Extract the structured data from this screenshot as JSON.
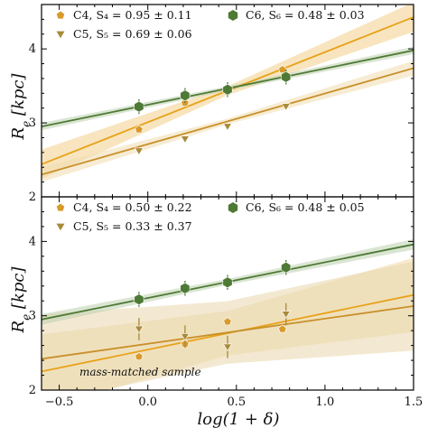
{
  "chart_data": [
    {
      "type": "scatter",
      "ylabel": "R_e [kpc]",
      "xlim": [
        -0.6,
        1.5
      ],
      "ylim": [
        2,
        4.6
      ],
      "yticks": [
        2,
        3,
        4
      ],
      "series": [
        {
          "name": "C4",
          "legend": "C4,  S₄ = 0.95 ± 0.11",
          "marker": "pentagon",
          "color": "#d79a2b",
          "x": [
            -0.05,
            0.21,
            0.45,
            0.76
          ],
          "y": [
            2.91,
            3.27,
            3.42,
            3.72
          ],
          "yerr": [
            0.04,
            0.04,
            0.04,
            0.04
          ],
          "fit": {
            "x": [
              -0.6,
              1.5
            ],
            "y": [
              2.44,
              4.43
            ]
          },
          "band": [
            0.06,
            0.2
          ],
          "fit_color": "#e8a21a",
          "band_color": "#f2cf8a"
        },
        {
          "name": "C5",
          "legend": "C5,  S₅ = 0.69 ± 0.06",
          "marker": "triangle-down",
          "color": "#a88a3a",
          "x": [
            -0.05,
            0.21,
            0.45,
            0.78
          ],
          "y": [
            2.62,
            2.78,
            2.95,
            3.22
          ],
          "yerr": [
            0.04,
            0.04,
            0.04,
            0.04
          ],
          "fit": {
            "x": [
              -0.6,
              1.5
            ],
            "y": [
              2.3,
              3.74
            ]
          },
          "band": [
            0.04,
            0.1
          ],
          "fit_color": "#c8902a",
          "band_color": "#f0dcae"
        },
        {
          "name": "C6",
          "legend": "C6,  S₆ = 0.48 ± 0.03",
          "marker": "hexagon",
          "color": "#4e7a35",
          "x": [
            -0.05,
            0.21,
            0.45,
            0.78
          ],
          "y": [
            3.22,
            3.37,
            3.45,
            3.62
          ],
          "yerr": [
            0.1,
            0.1,
            0.1,
            0.1
          ],
          "fit": {
            "x": [
              -0.6,
              1.5
            ],
            "y": [
              2.95,
              3.98
            ]
          },
          "band": [
            0.03,
            0.05
          ],
          "fit_color": "#4e7a35",
          "band_color": "#bcd0ad"
        }
      ]
    },
    {
      "type": "scatter",
      "xlabel": "log(1 + δ)",
      "ylabel": "R_e [kpc]",
      "annotation": "mass-matched sample",
      "xlim": [
        -0.6,
        1.5
      ],
      "ylim": [
        2,
        4.6
      ],
      "yticks": [
        2,
        3,
        4
      ],
      "xticks": [
        -0.5,
        0.0,
        0.5,
        1.0,
        1.5
      ],
      "xtick_labels": [
        "−0.5",
        "0.0",
        "0.5",
        "1.0",
        "1.5"
      ],
      "series": [
        {
          "name": "C4",
          "legend": "C4,  S₄ = 0.50 ± 0.22",
          "marker": "pentagon",
          "color": "#d79a2b",
          "x": [
            -0.05,
            0.21,
            0.45,
            0.76
          ],
          "y": [
            2.45,
            2.62,
            2.92,
            2.82
          ],
          "yerr": [
            0.05,
            0.05,
            0.05,
            0.05
          ],
          "fit": {
            "x": [
              -0.6,
              1.5
            ],
            "y": [
              2.25,
              3.28
            ]
          },
          "band": [
            0.3,
            0.5
          ],
          "fit_color": "#e8a21a",
          "band_color": "#f0d9a6"
        },
        {
          "name": "C5",
          "legend": "C5,  S₅ = 0.33 ± 0.37",
          "marker": "triangle-down",
          "color": "#a88a3a",
          "x": [
            -0.05,
            0.21,
            0.45,
            0.78
          ],
          "y": [
            2.82,
            2.72,
            2.58,
            3.02
          ],
          "yerr": [
            0.15,
            0.15,
            0.15,
            0.15
          ],
          "fit": {
            "x": [
              -0.6,
              1.5
            ],
            "y": [
              2.42,
              3.13
            ]
          },
          "band": [
            0.42,
            0.6
          ],
          "fit_color": "#c8902a",
          "band_color": "#ead7ad"
        },
        {
          "name": "C6",
          "legend": "C6,  S₆ = 0.48 ± 0.05",
          "marker": "hexagon",
          "color": "#4e7a35",
          "x": [
            -0.05,
            0.21,
            0.45,
            0.78
          ],
          "y": [
            3.22,
            3.37,
            3.45,
            3.65
          ],
          "yerr": [
            0.1,
            0.1,
            0.1,
            0.1
          ],
          "fit": {
            "x": [
              -0.6,
              1.5
            ],
            "y": [
              2.95,
              3.96
            ]
          },
          "band": [
            0.04,
            0.07
          ],
          "fit_color": "#4e7a35",
          "band_color": "#bcd0ad"
        }
      ]
    }
  ]
}
